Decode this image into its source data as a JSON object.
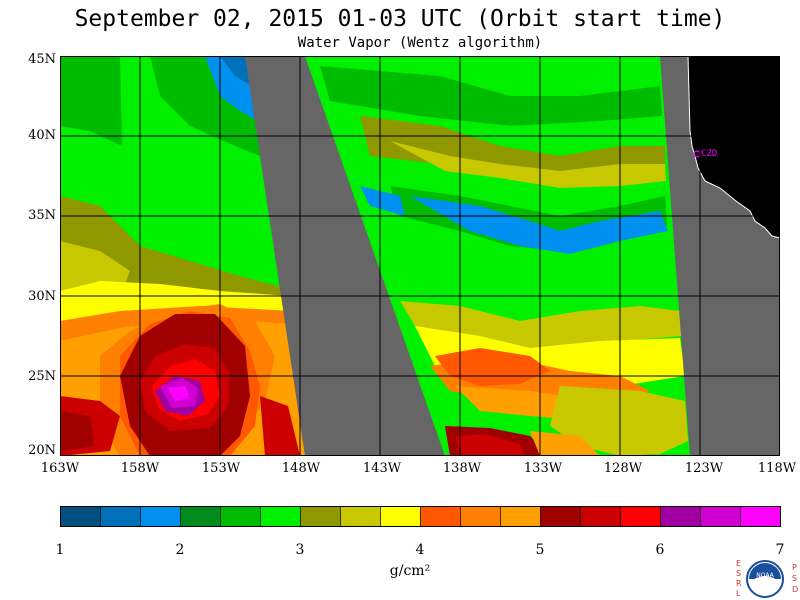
{
  "title": "September 02, 2015  01-03 UTC  (Orbit start time)",
  "subtitle": "Water Vapor (Wentz algorithm)",
  "map": {
    "lat_labels": [
      "45N",
      "40N",
      "35N",
      "30N",
      "25N",
      "20N"
    ],
    "lon_labels": [
      "163W",
      "158W",
      "153W",
      "148W",
      "143W",
      "138W",
      "133W",
      "128W",
      "123W",
      "118W"
    ],
    "lat_range": [
      20,
      45
    ],
    "lon_range": [
      -163,
      -118
    ],
    "station_label": "CZD",
    "land_color": "#000000",
    "nodata_color": "#666666",
    "grid_color": "#000000",
    "coastline_color": "#ffffff",
    "station_color": "#ff00ff"
  },
  "colorbar": {
    "range": [
      1,
      7
    ],
    "tick_labels": [
      "1",
      "2",
      "3",
      "4",
      "5",
      "6",
      "7"
    ],
    "unit_label": "g/cm²",
    "colors": [
      "#005080",
      "#0070b8",
      "#0090f0",
      "#008c1c",
      "#00bc00",
      "#00f000",
      "#909800",
      "#c8c800",
      "#ffff00",
      "#ff5800",
      "#ff8000",
      "#ffa000",
      "#a00000",
      "#cc0000",
      "#ff0000",
      "#a000a0",
      "#d000d0",
      "#ff00ff"
    ]
  },
  "logo": {
    "left_letters": "ESRL",
    "right_letters": "PSD",
    "badge_text": "NOAA"
  }
}
